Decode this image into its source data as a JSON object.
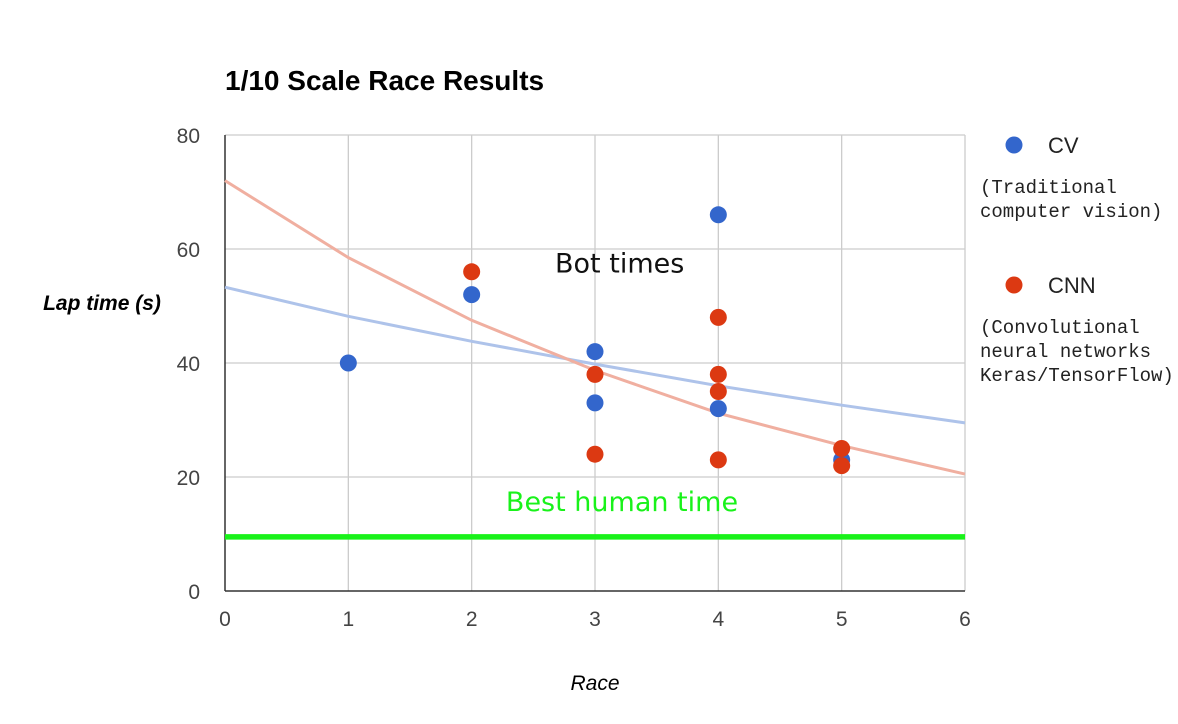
{
  "chart_data": {
    "type": "scatter",
    "title": "1/10 Scale Race Results",
    "xlabel": "Race",
    "ylabel": "Lap time (s)",
    "xlim": [
      0,
      6
    ],
    "ylim": [
      0,
      80
    ],
    "xticks": [
      "0",
      "1",
      "2",
      "3",
      "4",
      "5",
      "6"
    ],
    "yticks": [
      "0",
      "20",
      "40",
      "60",
      "80"
    ],
    "grid": true,
    "legend_position": "right",
    "series": [
      {
        "name": "CV",
        "note": [
          "(Traditional",
          "computer vision)"
        ],
        "color": "#3366cc",
        "trend_color": "#aec3ea",
        "trend": [
          [
            0,
            53.3
          ],
          [
            1,
            48.2
          ],
          [
            2,
            43.8
          ],
          [
            3,
            39.8
          ],
          [
            4,
            36.0
          ],
          [
            5,
            32.6
          ],
          [
            6,
            29.5
          ]
        ],
        "points": [
          [
            1,
            40
          ],
          [
            2,
            52
          ],
          [
            3,
            42
          ],
          [
            3,
            33
          ],
          [
            4,
            66
          ],
          [
            4,
            32
          ],
          [
            5,
            23
          ]
        ]
      },
      {
        "name": "CNN",
        "note": [
          "(Convolutional",
          "neural networks",
          "Keras/TensorFlow)"
        ],
        "color": "#dc3912",
        "trend_color": "#f0afa0",
        "trend": [
          [
            0,
            72.0
          ],
          [
            1,
            58.5
          ],
          [
            2,
            47.5
          ],
          [
            3,
            38.7
          ],
          [
            4,
            31.2
          ],
          [
            5,
            25.5
          ],
          [
            6,
            20.5
          ]
        ],
        "points": [
          [
            2,
            56
          ],
          [
            3,
            38
          ],
          [
            3,
            24
          ],
          [
            4,
            48
          ],
          [
            4,
            38
          ],
          [
            4,
            35
          ],
          [
            4,
            23
          ],
          [
            5,
            25
          ],
          [
            5,
            22
          ]
        ]
      }
    ],
    "reference_line": {
      "label": "Best human time",
      "value": 9.5,
      "color": "#19f21a"
    },
    "annotations": [
      {
        "text": "Bot times",
        "x": 3.2,
        "y": 57.5,
        "color": "#111111"
      }
    ]
  }
}
